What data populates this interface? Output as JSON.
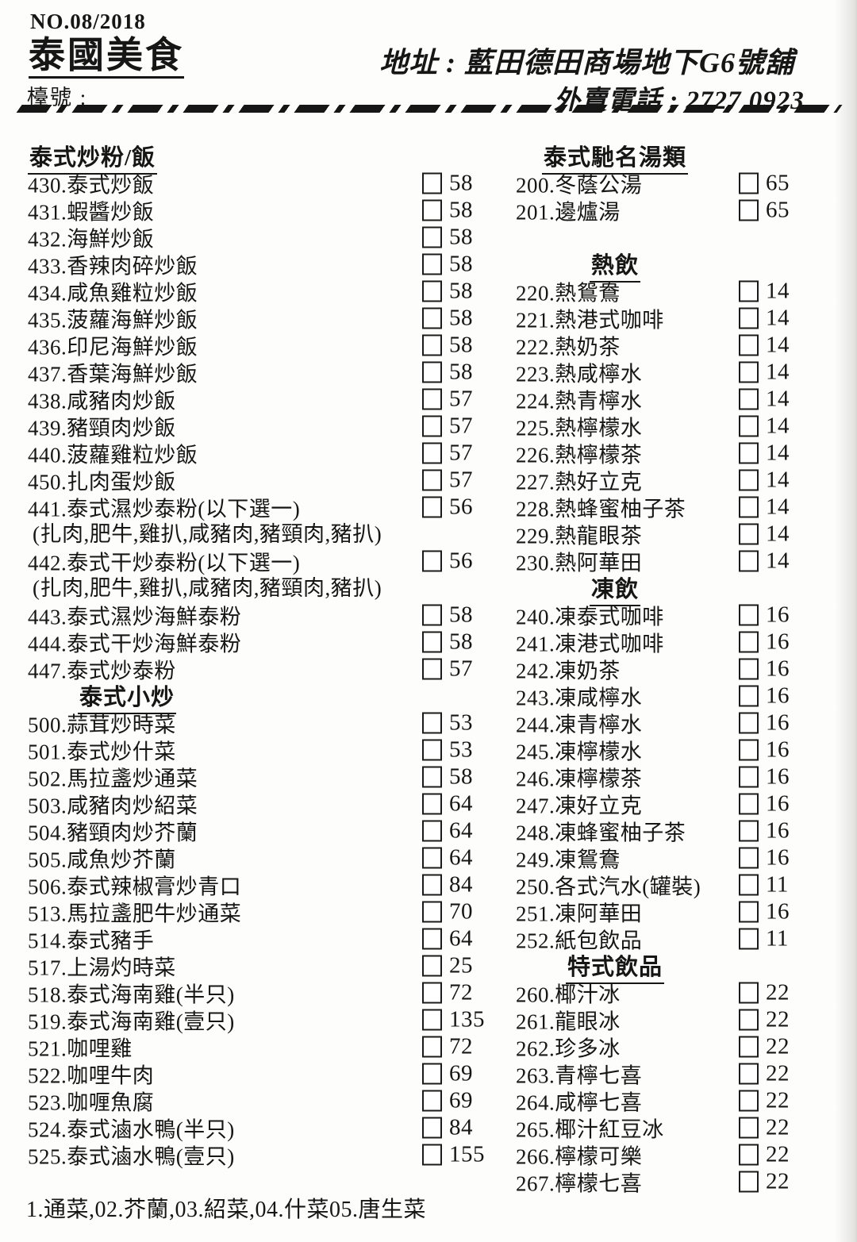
{
  "header": {
    "doc_number": "NO.08/2018",
    "restaurant_name": "泰國美食",
    "table_label": "檯號 :",
    "address_label": "地址 : ",
    "address_value": "藍田德田商場地下G6號舖",
    "phone_label": "外賣電話 : ",
    "phone_value": "2727 0923"
  },
  "columns": {
    "left": {
      "rows": [
        {
          "type": "section",
          "align": "left",
          "label": "泰式炒粉/飯"
        },
        {
          "type": "item",
          "name": "430.泰式炒飯",
          "price": 58
        },
        {
          "type": "item",
          "name": "431.蝦醬炒飯",
          "price": 58
        },
        {
          "type": "item",
          "name": "432.海鮮炒飯",
          "price": 58
        },
        {
          "type": "item",
          "name": "433.香辣肉碎炒飯",
          "price": 58
        },
        {
          "type": "item",
          "name": "434.咸魚雞粒炒飯",
          "price": 58
        },
        {
          "type": "item",
          "name": "435.菠蘿海鮮炒飯",
          "price": 58
        },
        {
          "type": "item",
          "name": "436.印尼海鮮炒飯",
          "price": 58
        },
        {
          "type": "item",
          "name": "437.香葉海鮮炒飯",
          "price": 58
        },
        {
          "type": "item",
          "name": "438.咸豬肉炒飯",
          "price": 57
        },
        {
          "type": "item",
          "name": "439.豬頸肉炒飯",
          "price": 57
        },
        {
          "type": "item",
          "name": "440.菠蘿雞粒炒飯",
          "price": 57
        },
        {
          "type": "item",
          "name": "450.扎肉蛋炒飯",
          "price": 57
        },
        {
          "type": "item",
          "name": "441.泰式濕炒泰粉(以下選一)",
          "price": 56
        },
        {
          "type": "note",
          "label": "(扎肉,肥牛,雞扒,咸豬肉,豬頸肉,豬扒)"
        },
        {
          "type": "item",
          "name": "442.泰式干炒泰粉(以下選一)",
          "price": 56
        },
        {
          "type": "note",
          "label": "(扎肉,肥牛,雞扒,咸豬肉,豬頸肉,豬扒)"
        },
        {
          "type": "item",
          "name": "443.泰式濕炒海鮮泰粉",
          "price": 58
        },
        {
          "type": "item",
          "name": "444.泰式干炒海鮮泰粉",
          "price": 58
        },
        {
          "type": "item",
          "name": "447.泰式炒泰粉",
          "price": 57
        },
        {
          "type": "section",
          "align": "center",
          "label": "泰式小炒"
        },
        {
          "type": "item",
          "name": "500.蒜茸炒時菜",
          "price": 53
        },
        {
          "type": "item",
          "name": "501.泰式炒什菜",
          "price": 53
        },
        {
          "type": "item",
          "name": "502.馬拉盞炒通菜",
          "price": 58
        },
        {
          "type": "item",
          "name": "503.咸豬肉炒紹菜",
          "price": 64
        },
        {
          "type": "item",
          "name": "504.豬頸肉炒芥蘭",
          "price": 64
        },
        {
          "type": "item",
          "name": "505.咸魚炒芥蘭",
          "price": 64
        },
        {
          "type": "item",
          "name": "506.泰式辣椒膏炒青口",
          "price": 84
        },
        {
          "type": "item",
          "name": "513.馬拉盞肥牛炒通菜",
          "price": 70
        },
        {
          "type": "item",
          "name": "514.泰式豬手",
          "price": 64
        },
        {
          "type": "item",
          "name": "517.上湯灼時菜",
          "price": 25
        },
        {
          "type": "item",
          "name": "518.泰式海南雞(半只)",
          "price": 72
        },
        {
          "type": "item",
          "name": "519.泰式海南雞(壹只)",
          "price": 135
        },
        {
          "type": "item",
          "name": "521.咖哩雞",
          "price": 72
        },
        {
          "type": "item",
          "name": "522.咖哩牛肉",
          "price": 69
        },
        {
          "type": "item",
          "name": "523.咖喱魚腐",
          "price": 69
        },
        {
          "type": "item",
          "name": "524.泰式滷水鴨(半只)",
          "price": 84
        },
        {
          "type": "item",
          "name": "525.泰式滷水鴨(壹只)",
          "price": 155
        }
      ]
    },
    "right": {
      "rows": [
        {
          "type": "section",
          "align": "center",
          "label": "泰式馳名湯類"
        },
        {
          "type": "item",
          "name": "200.冬蔭公湯",
          "price": 65
        },
        {
          "type": "item",
          "name": "201.邊爐湯",
          "price": 65
        },
        {
          "type": "spacer"
        },
        {
          "type": "section",
          "align": "center",
          "label": "熱飲"
        },
        {
          "type": "item",
          "name": "220.熱鴛鴦",
          "price": 14
        },
        {
          "type": "item",
          "name": "221.熱港式咖啡",
          "price": 14
        },
        {
          "type": "item",
          "name": "222.熱奶茶",
          "price": 14
        },
        {
          "type": "item",
          "name": "223.熱咸檸水",
          "price": 14
        },
        {
          "type": "item",
          "name": "224.熱青檸水",
          "price": 14
        },
        {
          "type": "item",
          "name": "225.熱檸檬水",
          "price": 14
        },
        {
          "type": "item",
          "name": "226.熱檸檬茶",
          "price": 14
        },
        {
          "type": "item",
          "name": "227.熱好立克",
          "price": 14
        },
        {
          "type": "item",
          "name": "228.熱蜂蜜柚子茶",
          "price": 14
        },
        {
          "type": "item",
          "name": "229.熱龍眼茶",
          "price": 14
        },
        {
          "type": "item",
          "name": "230.熱阿華田",
          "price": 14
        },
        {
          "type": "section",
          "align": "center",
          "label": "凍飲"
        },
        {
          "type": "item",
          "name": "240.凍泰式咖啡",
          "price": 16
        },
        {
          "type": "item",
          "name": "241.凍港式咖啡",
          "price": 16
        },
        {
          "type": "item",
          "name": "242.凍奶茶",
          "price": 16
        },
        {
          "type": "item",
          "name": "243.凍咸檸水",
          "price": 16
        },
        {
          "type": "item",
          "name": "244.凍青檸水",
          "price": 16
        },
        {
          "type": "item",
          "name": "245.凍檸檬水",
          "price": 16
        },
        {
          "type": "item",
          "name": "246.凍檸檬茶",
          "price": 16
        },
        {
          "type": "item",
          "name": "247.凍好立克",
          "price": 16
        },
        {
          "type": "item",
          "name": "248.凍蜂蜜柚子茶",
          "price": 16
        },
        {
          "type": "item",
          "name": "249.凍鴛鴦",
          "price": 16
        },
        {
          "type": "item",
          "name": "250.各式汽水(罐裝)",
          "price": 11
        },
        {
          "type": "item",
          "name": "251.凍阿華田",
          "price": 16
        },
        {
          "type": "item",
          "name": "252.紙包飲品",
          "price": 11
        },
        {
          "type": "section",
          "align": "center",
          "label": "特式飲品"
        },
        {
          "type": "item",
          "name": "260.椰汁冰",
          "price": 22
        },
        {
          "type": "item",
          "name": "261.龍眼冰",
          "price": 22
        },
        {
          "type": "item",
          "name": "262.珍多冰",
          "price": 22
        },
        {
          "type": "item",
          "name": "263.青檸七喜",
          "price": 22
        },
        {
          "type": "item",
          "name": "264.咸檸七喜",
          "price": 22
        },
        {
          "type": "item",
          "name": "265.椰汁紅豆冰",
          "price": 22
        },
        {
          "type": "item",
          "name": "266.檸檬可樂",
          "price": 22
        },
        {
          "type": "item",
          "name": "267.檸檬七喜",
          "price": 22
        }
      ]
    }
  },
  "footer": {
    "note": "1.通菜,02.芥蘭,03.紹菜,04.什菜05.唐生菜"
  }
}
